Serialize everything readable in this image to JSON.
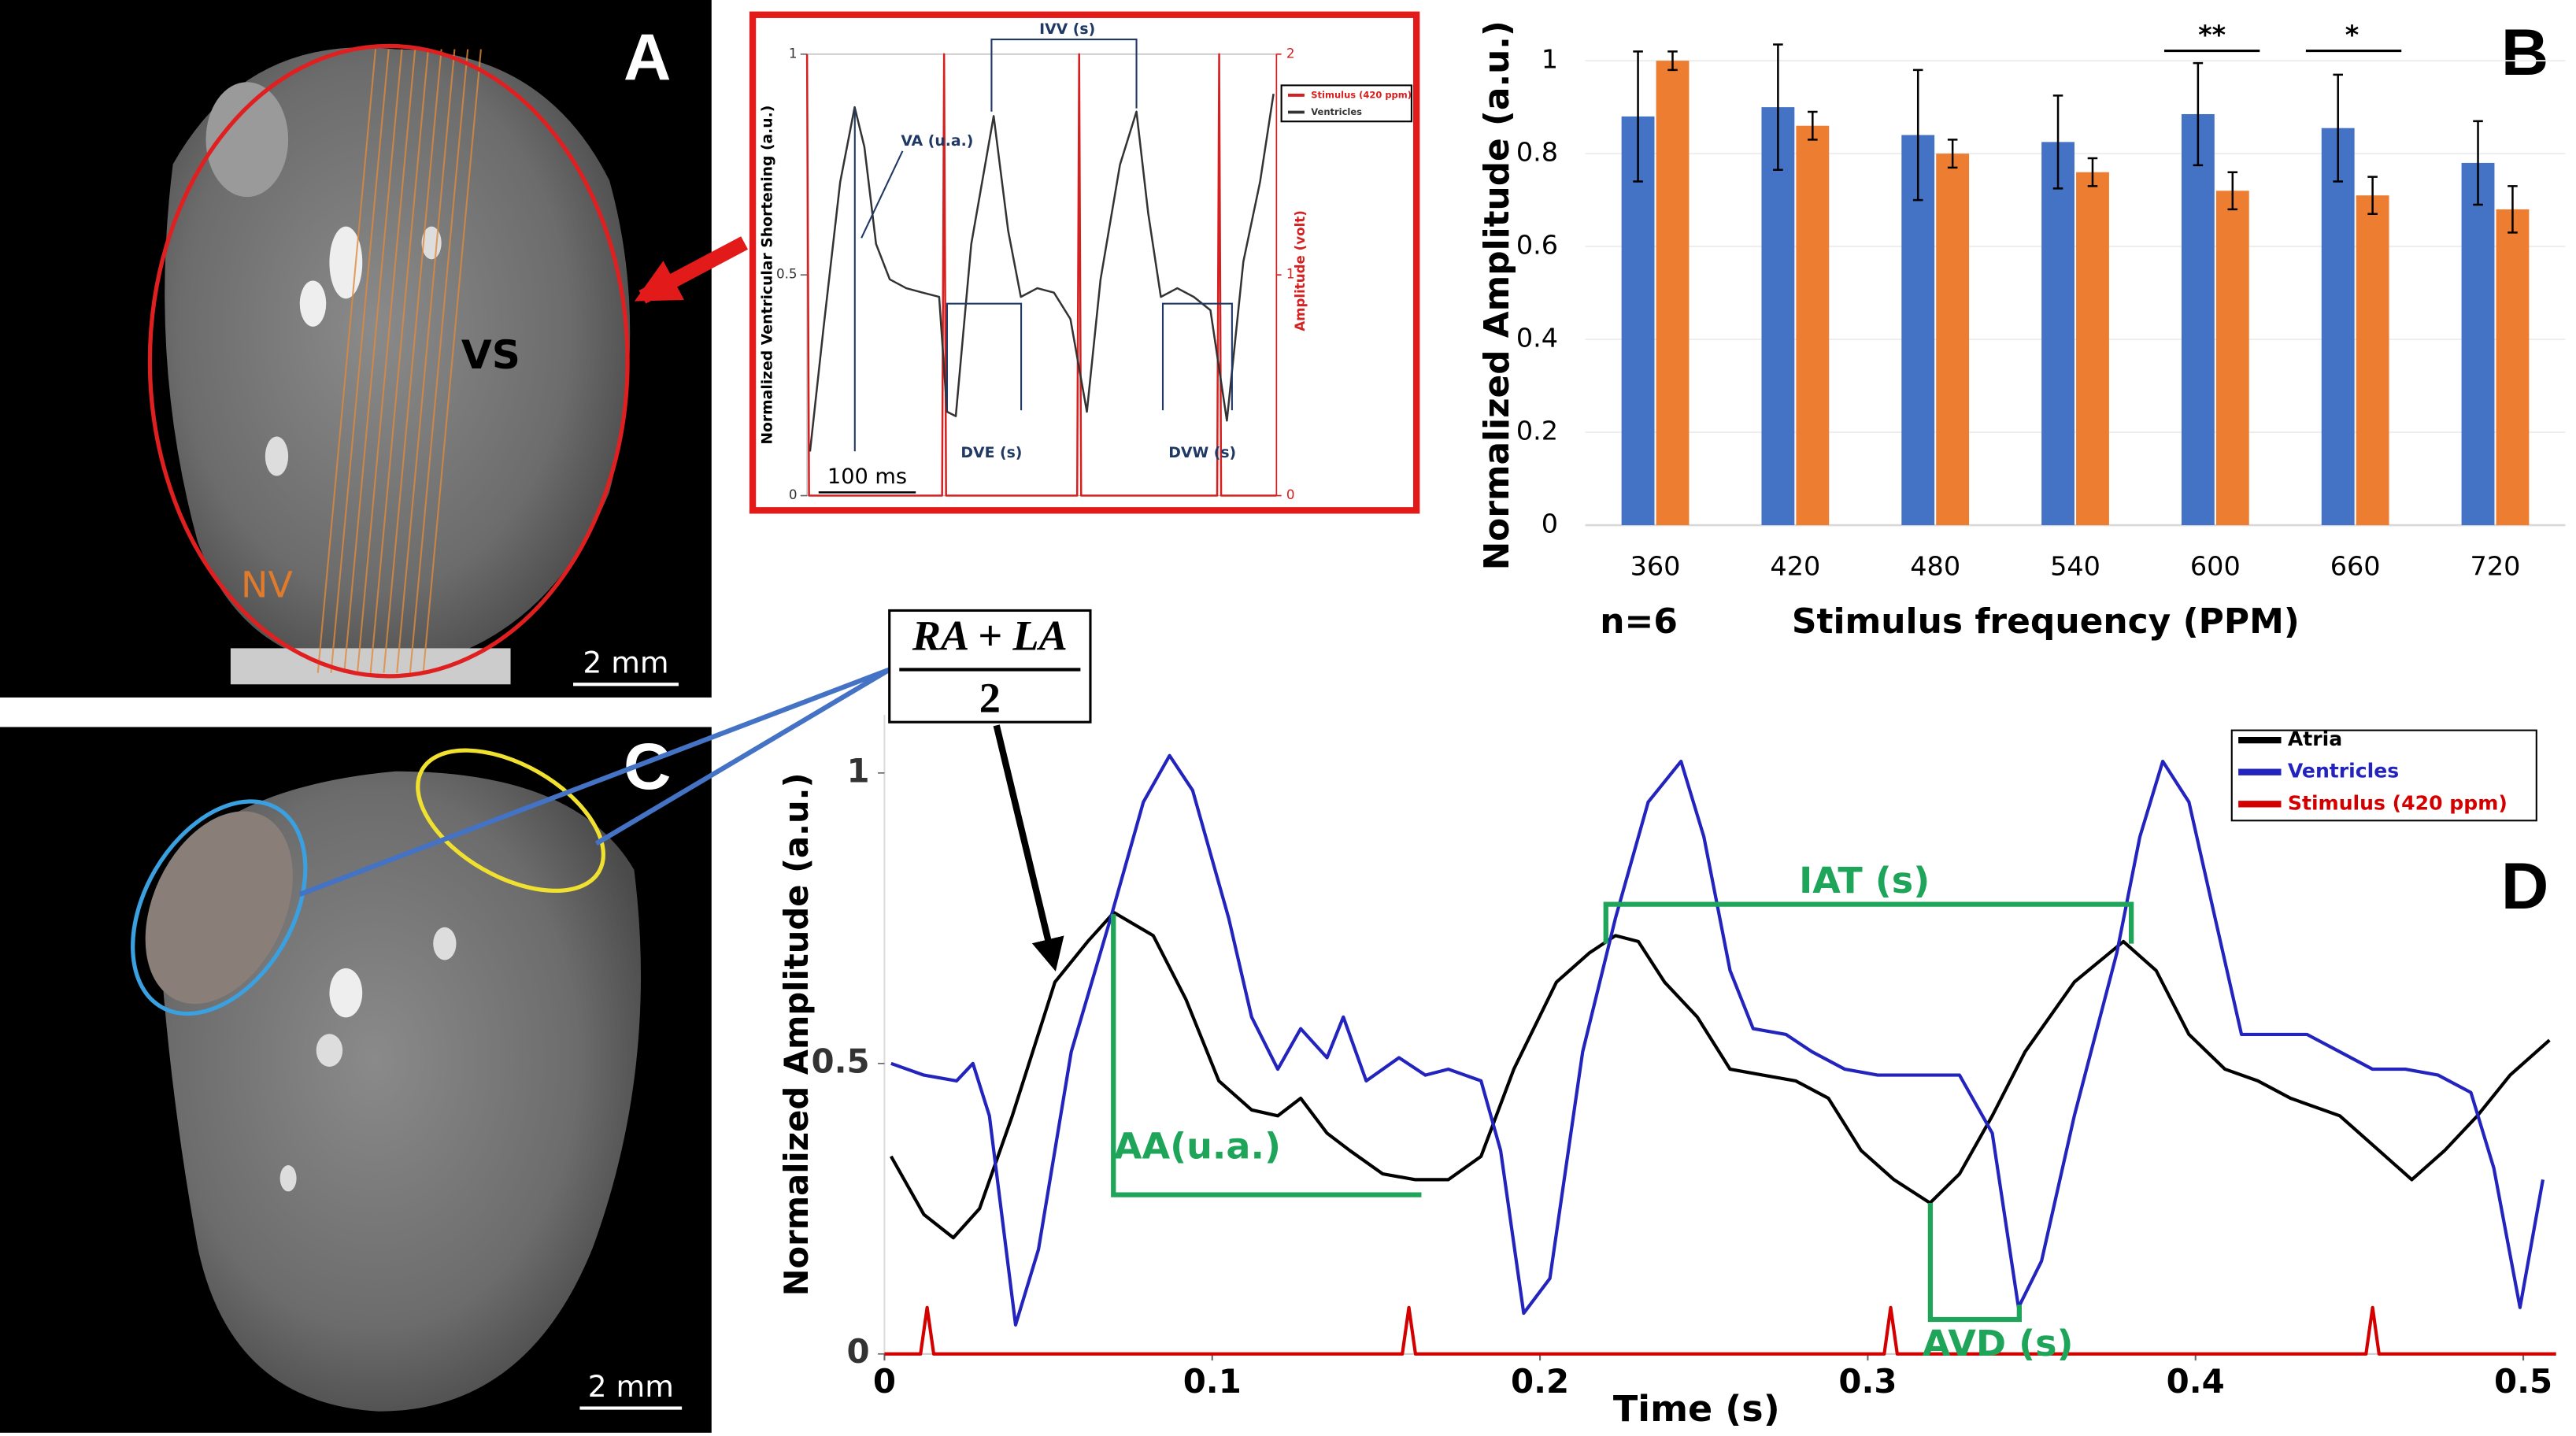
{
  "panel_labels": {
    "a": "A",
    "b": "B",
    "c": "C",
    "d": "D"
  },
  "image_a": {
    "vs": "VS",
    "nv": "NV",
    "scale_bar": "2 mm"
  },
  "image_c": {
    "scale_bar": "2 mm"
  },
  "formula": {
    "numerator": "RA + LA",
    "denominator": "2"
  },
  "chart_data": [
    {
      "type": "line",
      "ylabel": "Normalized Ventricular Shortening (a.u.)",
      "y2label": "Amplitude (volt)",
      "xlim": [
        0,
        483
      ],
      "ylim": [
        0,
        1
      ],
      "yticks": [
        0,
        0.5,
        1
      ],
      "y2lim": [
        0,
        2
      ],
      "y2ticks": [
        0,
        1,
        2
      ],
      "legend": "upper right",
      "series": [
        {
          "name": "Stimulus (420 ppm)",
          "color": "#d62020",
          "axis": "y2",
          "x": [
            0,
            2,
            139,
            141,
            143,
            278,
            280,
            282,
            422,
            424,
            426,
            483
          ],
          "values": [
            2,
            0,
            0,
            2,
            0,
            0,
            2,
            0,
            0,
            2,
            0,
            0
          ]
        },
        {
          "name": "Ventricles",
          "color": "#333333",
          "x": [
            3,
            17,
            34,
            49,
            59,
            71,
            85,
            102,
            119,
            136,
            144,
            153,
            169,
            192,
            207,
            220,
            237,
            254,
            271,
            288,
            302,
            322,
            339,
            351,
            364,
            381,
            398,
            415,
            432,
            449,
            466,
            480
          ],
          "values": [
            0.1,
            0.38,
            0.71,
            0.88,
            0.79,
            0.57,
            0.49,
            0.47,
            0.46,
            0.45,
            0.19,
            0.18,
            0.57,
            0.86,
            0.6,
            0.45,
            0.47,
            0.46,
            0.4,
            0.19,
            0.49,
            0.75,
            0.87,
            0.64,
            0.45,
            0.47,
            0.45,
            0.42,
            0.17,
            0.53,
            0.71,
            0.91
          ]
        }
      ],
      "annotations": [
        "VA (u.a.)",
        "IVV (s)",
        "DVE (s)",
        "DVW (s)"
      ],
      "scale_bar": {
        "label": "100 ms",
        "value": 100
      }
    },
    {
      "type": "bar",
      "ylabel": "Normalized Amplitude (a.u.)",
      "xlabel": "Stimulus frequency (PPM)",
      "categories": [
        "360",
        "420",
        "480",
        "540",
        "600",
        "660",
        "720"
      ],
      "ylim": [
        0,
        1.1
      ],
      "yticks": [
        0,
        0.2,
        0.4,
        0.6,
        0.8,
        1
      ],
      "grid": true,
      "series": [
        {
          "color": "#4472c4",
          "values": [
            0.88,
            0.9,
            0.84,
            0.825,
            0.885,
            0.855,
            0.78
          ],
          "errors": [
            0.14,
            0.135,
            0.14,
            0.1,
            0.11,
            0.115,
            0.09
          ]
        },
        {
          "color": "#ed7d31",
          "values": [
            1.0,
            0.86,
            0.8,
            0.76,
            0.72,
            0.71,
            0.68
          ],
          "errors": [
            0.02,
            0.03,
            0.03,
            0.03,
            0.04,
            0.04,
            0.05
          ]
        }
      ],
      "annotations": [
        "**",
        "*",
        "n=6"
      ]
    },
    {
      "type": "line",
      "xlabel": "Time (s)",
      "ylabel": "Normalized Amplitude (a.u.)",
      "xlim": [
        0,
        0.51
      ],
      "ylim": [
        0,
        1.1
      ],
      "xticks": [
        0,
        0.1,
        0.2,
        0.3,
        0.4,
        0.5
      ],
      "yticks": [
        0,
        0.5,
        1
      ],
      "legend": "upper right",
      "series": [
        {
          "name": "Atria",
          "color": "#000000",
          "x": [
            0.002,
            0.012,
            0.021,
            0.029,
            0.039,
            0.052,
            0.062,
            0.07,
            0.082,
            0.092,
            0.102,
            0.112,
            0.12,
            0.127,
            0.135,
            0.142,
            0.152,
            0.162,
            0.172,
            0.182,
            0.192,
            0.205,
            0.215,
            0.223,
            0.23,
            0.238,
            0.248,
            0.258,
            0.268,
            0.278,
            0.288,
            0.298,
            0.308,
            0.319,
            0.328,
            0.338,
            0.348,
            0.363,
            0.378,
            0.388,
            0.398,
            0.409,
            0.419,
            0.429,
            0.444,
            0.456,
            0.466,
            0.476,
            0.486,
            0.496,
            0.508
          ],
          "values": [
            0.34,
            0.24,
            0.2,
            0.25,
            0.41,
            0.64,
            0.71,
            0.76,
            0.72,
            0.61,
            0.47,
            0.42,
            0.41,
            0.44,
            0.38,
            0.35,
            0.31,
            0.3,
            0.3,
            0.34,
            0.49,
            0.64,
            0.69,
            0.72,
            0.71,
            0.64,
            0.58,
            0.49,
            0.48,
            0.47,
            0.44,
            0.35,
            0.3,
            0.26,
            0.31,
            0.41,
            0.52,
            0.64,
            0.71,
            0.66,
            0.55,
            0.49,
            0.47,
            0.44,
            0.41,
            0.35,
            0.3,
            0.35,
            0.41,
            0.48,
            0.54
          ]
        },
        {
          "name": "Ventricles",
          "color": "#2323bd",
          "x": [
            0.002,
            0.012,
            0.022,
            0.027,
            0.032,
            0.04,
            0.047,
            0.057,
            0.069,
            0.079,
            0.087,
            0.094,
            0.105,
            0.112,
            0.12,
            0.127,
            0.135,
            0.14,
            0.147,
            0.157,
            0.165,
            0.172,
            0.182,
            0.188,
            0.195,
            0.203,
            0.213,
            0.223,
            0.233,
            0.243,
            0.25,
            0.258,
            0.265,
            0.275,
            0.283,
            0.293,
            0.303,
            0.313,
            0.328,
            0.338,
            0.346,
            0.353,
            0.363,
            0.376,
            0.383,
            0.39,
            0.398,
            0.406,
            0.414,
            0.424,
            0.434,
            0.444,
            0.454,
            0.464,
            0.474,
            0.484,
            0.491,
            0.499,
            0.506
          ],
          "values": [
            0.5,
            0.48,
            0.47,
            0.5,
            0.41,
            0.05,
            0.18,
            0.52,
            0.75,
            0.95,
            1.03,
            0.97,
            0.75,
            0.58,
            0.49,
            0.56,
            0.51,
            0.58,
            0.47,
            0.51,
            0.48,
            0.49,
            0.47,
            0.35,
            0.07,
            0.13,
            0.52,
            0.75,
            0.95,
            1.02,
            0.89,
            0.66,
            0.56,
            0.55,
            0.52,
            0.49,
            0.48,
            0.48,
            0.48,
            0.38,
            0.08,
            0.16,
            0.41,
            0.69,
            0.89,
            1.02,
            0.95,
            0.75,
            0.55,
            0.55,
            0.55,
            0.52,
            0.49,
            0.49,
            0.48,
            0.45,
            0.32,
            0.08,
            0.3
          ]
        },
        {
          "name": "Stimulus (420 ppm)",
          "color": "#d40000",
          "x": [
            0,
            0.011,
            0.013,
            0.015,
            0.158,
            0.16,
            0.162,
            0.305,
            0.307,
            0.309,
            0.452,
            0.454,
            0.456,
            0.51
          ],
          "values": [
            0,
            0,
            0.08,
            0,
            0,
            0.08,
            0,
            0,
            0.08,
            0,
            0,
            0.08,
            0,
            0
          ]
        }
      ],
      "annotations": [
        "IAT (s)",
        "AA(u.a.)",
        "AVD (s)"
      ]
    }
  ]
}
